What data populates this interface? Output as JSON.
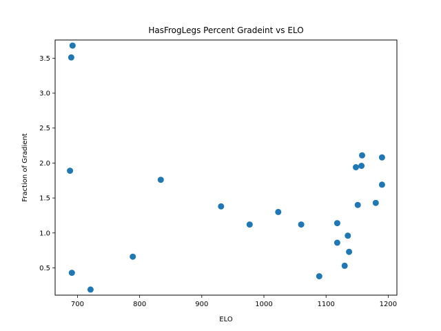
{
  "chart_data": {
    "type": "scatter",
    "title": "HasFrogLegs Percent Gradeint vs ELO",
    "xlabel": "ELO",
    "ylabel": "Fraction of Gradient",
    "xlim": [
      664,
      1214
    ],
    "ylim": [
      0.11,
      3.76
    ],
    "xticks": [
      700,
      800,
      900,
      1000,
      1100,
      1200
    ],
    "yticks": [
      0.5,
      1.0,
      1.5,
      2.0,
      2.5,
      3.0,
      3.5
    ],
    "xtick_labels": [
      "700",
      "800",
      "900",
      "1000",
      "1100",
      "1200"
    ],
    "ytick_labels": [
      "0.5",
      "1.0",
      "1.5",
      "2.0",
      "2.5",
      "3.0",
      "3.5"
    ],
    "grid": false,
    "color": "#1f77b4",
    "points": [
      {
        "x": 692,
        "y": 3.68
      },
      {
        "x": 690,
        "y": 3.51
      },
      {
        "x": 688,
        "y": 1.89
      },
      {
        "x": 691,
        "y": 0.43
      },
      {
        "x": 721,
        "y": 0.19
      },
      {
        "x": 789,
        "y": 0.66
      },
      {
        "x": 834,
        "y": 1.76
      },
      {
        "x": 931,
        "y": 1.38
      },
      {
        "x": 977,
        "y": 1.12
      },
      {
        "x": 1023,
        "y": 1.3
      },
      {
        "x": 1060,
        "y": 1.12
      },
      {
        "x": 1089,
        "y": 0.38
      },
      {
        "x": 1118,
        "y": 1.14
      },
      {
        "x": 1118,
        "y": 0.86
      },
      {
        "x": 1130,
        "y": 0.53
      },
      {
        "x": 1135,
        "y": 0.96
      },
      {
        "x": 1137,
        "y": 0.73
      },
      {
        "x": 1148,
        "y": 1.94
      },
      {
        "x": 1151,
        "y": 1.4
      },
      {
        "x": 1157,
        "y": 1.96
      },
      {
        "x": 1158,
        "y": 2.11
      },
      {
        "x": 1180,
        "y": 1.43
      },
      {
        "x": 1190,
        "y": 2.08
      },
      {
        "x": 1190,
        "y": 1.69
      }
    ]
  }
}
